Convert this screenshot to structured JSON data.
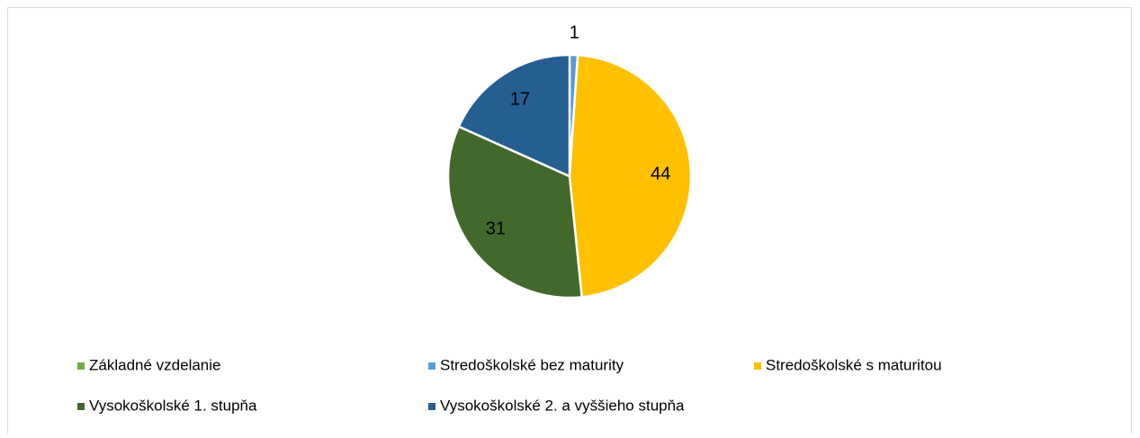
{
  "chart_data": {
    "type": "pie",
    "categories": [
      "Základné vzdelanie",
      "Stredoškolské bez maturity",
      "Stredoškolské s maturitou",
      "Vysokoškolské 1. stupňa",
      "Vysokoškolské 2. a vyššieho stupňa"
    ],
    "values": [
      0,
      1,
      44,
      31,
      17
    ],
    "colors": [
      "#70ad47",
      "#5b9bd5",
      "#ffc000",
      "#43682b",
      "#255e91"
    ],
    "legend": "bottom"
  }
}
